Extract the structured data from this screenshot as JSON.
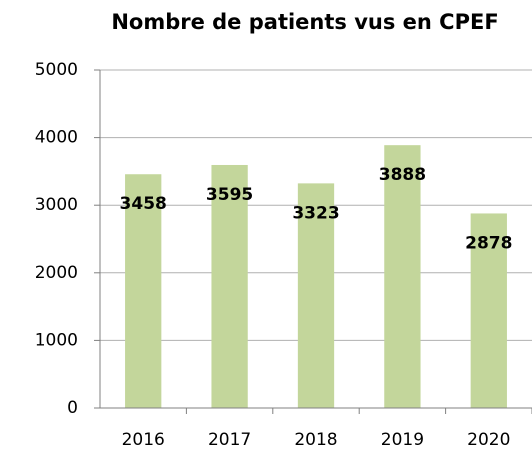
{
  "chart_data": {
    "type": "bar",
    "title": "Nombre de patients vus en CPEF",
    "categories": [
      "2016",
      "2017",
      "2018",
      "2019",
      "2020"
    ],
    "values": [
      3458,
      3595,
      3323,
      3888,
      2878
    ],
    "color": "#c3d69b",
    "ylim": [
      0,
      5000
    ],
    "yticks": [
      0,
      1000,
      2000,
      3000,
      4000,
      5000
    ],
    "grid": true
  }
}
